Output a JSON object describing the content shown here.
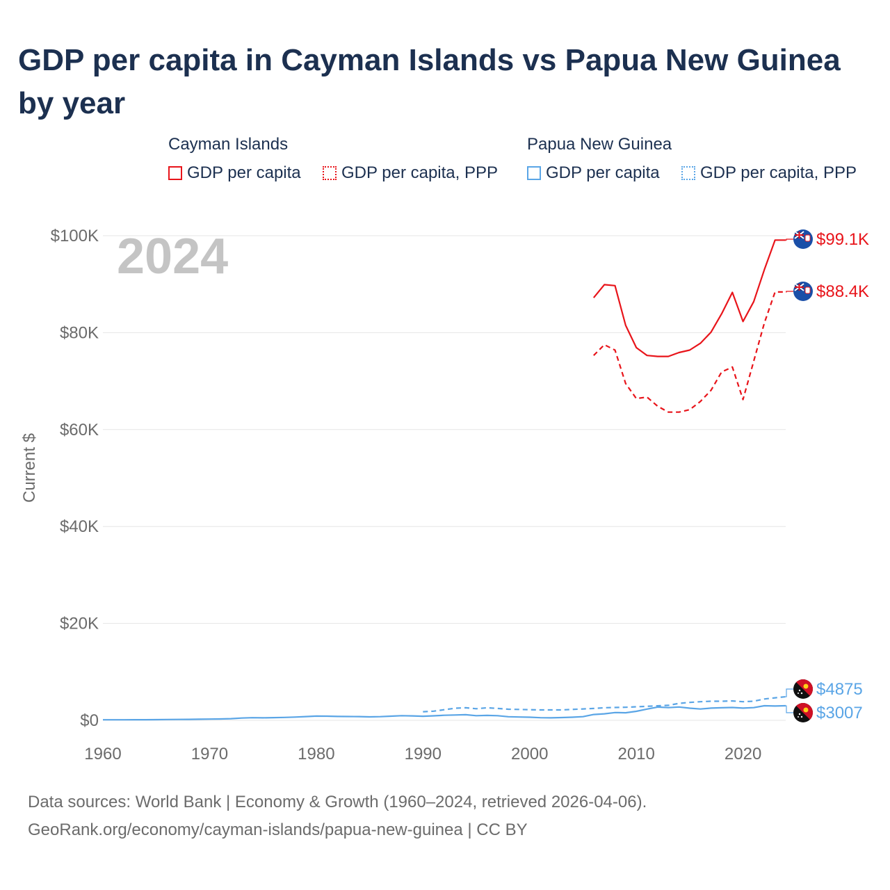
{
  "title": "GDP per capita in Cayman Islands vs Papua New Guinea by year",
  "legend": {
    "groups": [
      {
        "country": "Cayman Islands",
        "items": [
          "GDP per capita",
          "GDP per capita, PPP"
        ]
      },
      {
        "country": "Papua New Guinea",
        "items": [
          "GDP per capita",
          "GDP per capita, PPP"
        ]
      }
    ]
  },
  "footer": {
    "line1": "Data sources: World Bank | Economy & Growth (1960–2024, retrieved 2026-04-06).",
    "line2": "GeoRank.org/economy/cayman-islands/papua-new-guinea | CC BY"
  },
  "colors": {
    "cayman": "#e8141a",
    "png": "#5aa5e6",
    "grid": "#e6e6e6",
    "axis_text": "#6b6b6b",
    "year_watermark": "#c4c4c4"
  },
  "chart_data": {
    "type": "line",
    "title": "GDP per capita in Cayman Islands vs Papua New Guinea by year",
    "year_label": "2024",
    "xlabel": "",
    "ylabel": "Current $",
    "xlim": [
      1960,
      2024
    ],
    "ylim": [
      0,
      100000
    ],
    "xticks": [
      1960,
      1970,
      1980,
      1990,
      2000,
      2010,
      2020
    ],
    "xtick_labels": [
      "1960",
      "1970",
      "1980",
      "1990",
      "2000",
      "2010",
      "2020"
    ],
    "yticks": [
      0,
      20000,
      40000,
      60000,
      80000,
      100000
    ],
    "ytick_labels": [
      "$0",
      "$20K",
      "$40K",
      "$60K",
      "$80K",
      "$100K"
    ],
    "series": [
      {
        "name": "Cayman Islands — GDP per capita",
        "country": "Cayman Islands",
        "color": "#e8141a",
        "dash": "solid",
        "end_label": "$99.1K",
        "flag": "cayman",
        "x": [
          2006,
          2007,
          2008,
          2009,
          2010,
          2011,
          2012,
          2013,
          2014,
          2015,
          2016,
          2017,
          2018,
          2019,
          2020,
          2021,
          2022,
          2023,
          2024
        ],
        "values": [
          87200,
          89900,
          89700,
          81500,
          76900,
          75300,
          75100,
          75100,
          75900,
          76400,
          77800,
          80100,
          83900,
          88300,
          82300,
          86400,
          93000,
          99100,
          99100
        ]
      },
      {
        "name": "Cayman Islands — GDP per capita, PPP",
        "country": "Cayman Islands",
        "color": "#e8141a",
        "dash": "dashed",
        "end_label": "$88.4K",
        "flag": "cayman",
        "x": [
          2006,
          2007,
          2008,
          2009,
          2010,
          2011,
          2012,
          2013,
          2014,
          2015,
          2016,
          2017,
          2018,
          2019,
          2020,
          2021,
          2022,
          2023,
          2024
        ],
        "values": [
          75300,
          77500,
          76400,
          69500,
          66400,
          66700,
          64800,
          63600,
          63600,
          64100,
          65800,
          68100,
          71900,
          72900,
          66200,
          74100,
          82000,
          88400,
          88400
        ]
      },
      {
        "name": "Papua New Guinea — GDP per capita",
        "country": "Papua New Guinea",
        "color": "#5aa5e6",
        "dash": "solid",
        "end_label": "$3007",
        "flag": "png",
        "x": [
          1960,
          1961,
          1962,
          1963,
          1964,
          1965,
          1966,
          1967,
          1968,
          1969,
          1970,
          1971,
          1972,
          1973,
          1974,
          1975,
          1976,
          1977,
          1978,
          1979,
          1980,
          1981,
          1982,
          1983,
          1984,
          1985,
          1986,
          1987,
          1988,
          1989,
          1990,
          1991,
          1992,
          1993,
          1994,
          1995,
          1996,
          1997,
          1998,
          1999,
          2000,
          2001,
          2002,
          2003,
          2004,
          2005,
          2006,
          2007,
          2008,
          2009,
          2010,
          2011,
          2012,
          2013,
          2014,
          2015,
          2016,
          2017,
          2018,
          2019,
          2020,
          2021,
          2022,
          2023,
          2024
        ],
        "values": [
          110,
          115,
          120,
          125,
          135,
          150,
          165,
          180,
          200,
          225,
          260,
          290,
          340,
          480,
          540,
          510,
          560,
          600,
          680,
          780,
          880,
          860,
          800,
          790,
          770,
          720,
          760,
          860,
          960,
          920,
          850,
          930,
          1050,
          1110,
          1160,
          960,
          1020,
          960,
          750,
          690,
          640,
          540,
          510,
          570,
          640,
          760,
          1210,
          1350,
          1600,
          1570,
          1860,
          2330,
          2740,
          2630,
          2750,
          2510,
          2340,
          2520,
          2590,
          2650,
          2520,
          2620,
          3020,
          2960,
          3007
        ]
      },
      {
        "name": "Papua New Guinea — GDP per capita, PPP",
        "country": "Papua New Guinea",
        "color": "#5aa5e6",
        "dash": "dashed",
        "end_label": "$4875",
        "flag": "png",
        "x": [
          1990,
          1991,
          1992,
          1993,
          1994,
          1995,
          1996,
          1997,
          1998,
          1999,
          2000,
          2001,
          2002,
          2003,
          2004,
          2005,
          2006,
          2007,
          2008,
          2009,
          2010,
          2011,
          2012,
          2013,
          2014,
          2015,
          2016,
          2017,
          2018,
          2019,
          2020,
          2021,
          2022,
          2023,
          2024
        ],
        "values": [
          1780,
          1900,
          2200,
          2500,
          2600,
          2400,
          2600,
          2450,
          2300,
          2250,
          2200,
          2150,
          2150,
          2150,
          2250,
          2350,
          2450,
          2600,
          2650,
          2700,
          2800,
          2900,
          3000,
          3100,
          3500,
          3700,
          3850,
          3950,
          3950,
          4000,
          3850,
          3950,
          4400,
          4650,
          4875
        ]
      }
    ]
  }
}
